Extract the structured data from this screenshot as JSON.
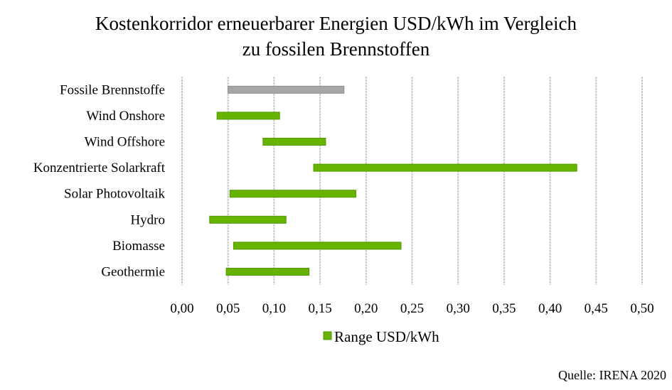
{
  "chart_data": {
    "type": "bar",
    "orientation": "horizontal-range",
    "title": [
      "Kostenkorridor  erneuerbarer  Energien  USD/kWh  im  Vergleich",
      "zu fossilen Brennstoffen"
    ],
    "categories": [
      "Fossile Brennstoffe",
      "Wind Onshore",
      "Wind Offshore",
      "Konzentrierte Solarkraft",
      "Solar Photovoltaik",
      "Hydro",
      "Biomasse",
      "Geothermie"
    ],
    "series": [
      {
        "name": "Range USD/kWh",
        "ranges": [
          [
            0.05,
            0.176
          ],
          [
            0.038,
            0.106
          ],
          [
            0.088,
            0.156
          ],
          [
            0.143,
            0.429
          ],
          [
            0.052,
            0.189
          ],
          [
            0.03,
            0.113
          ],
          [
            0.056,
            0.238
          ],
          [
            0.048,
            0.138
          ]
        ]
      }
    ],
    "bar_colors": [
      "#a6a6a6",
      "#66b300",
      "#66b300",
      "#66b300",
      "#66b300",
      "#66b300",
      "#66b300",
      "#66b300"
    ],
    "xlim": [
      0,
      0.5
    ],
    "xticks": [
      "0,00",
      "0,05",
      "0,10",
      "0,15",
      "0,20",
      "0,25",
      "0,30",
      "0,35",
      "0,40",
      "0,45",
      "0,50"
    ],
    "grid": true,
    "legend_position": "bottom",
    "source": "Quelle: IRENA 2020"
  }
}
